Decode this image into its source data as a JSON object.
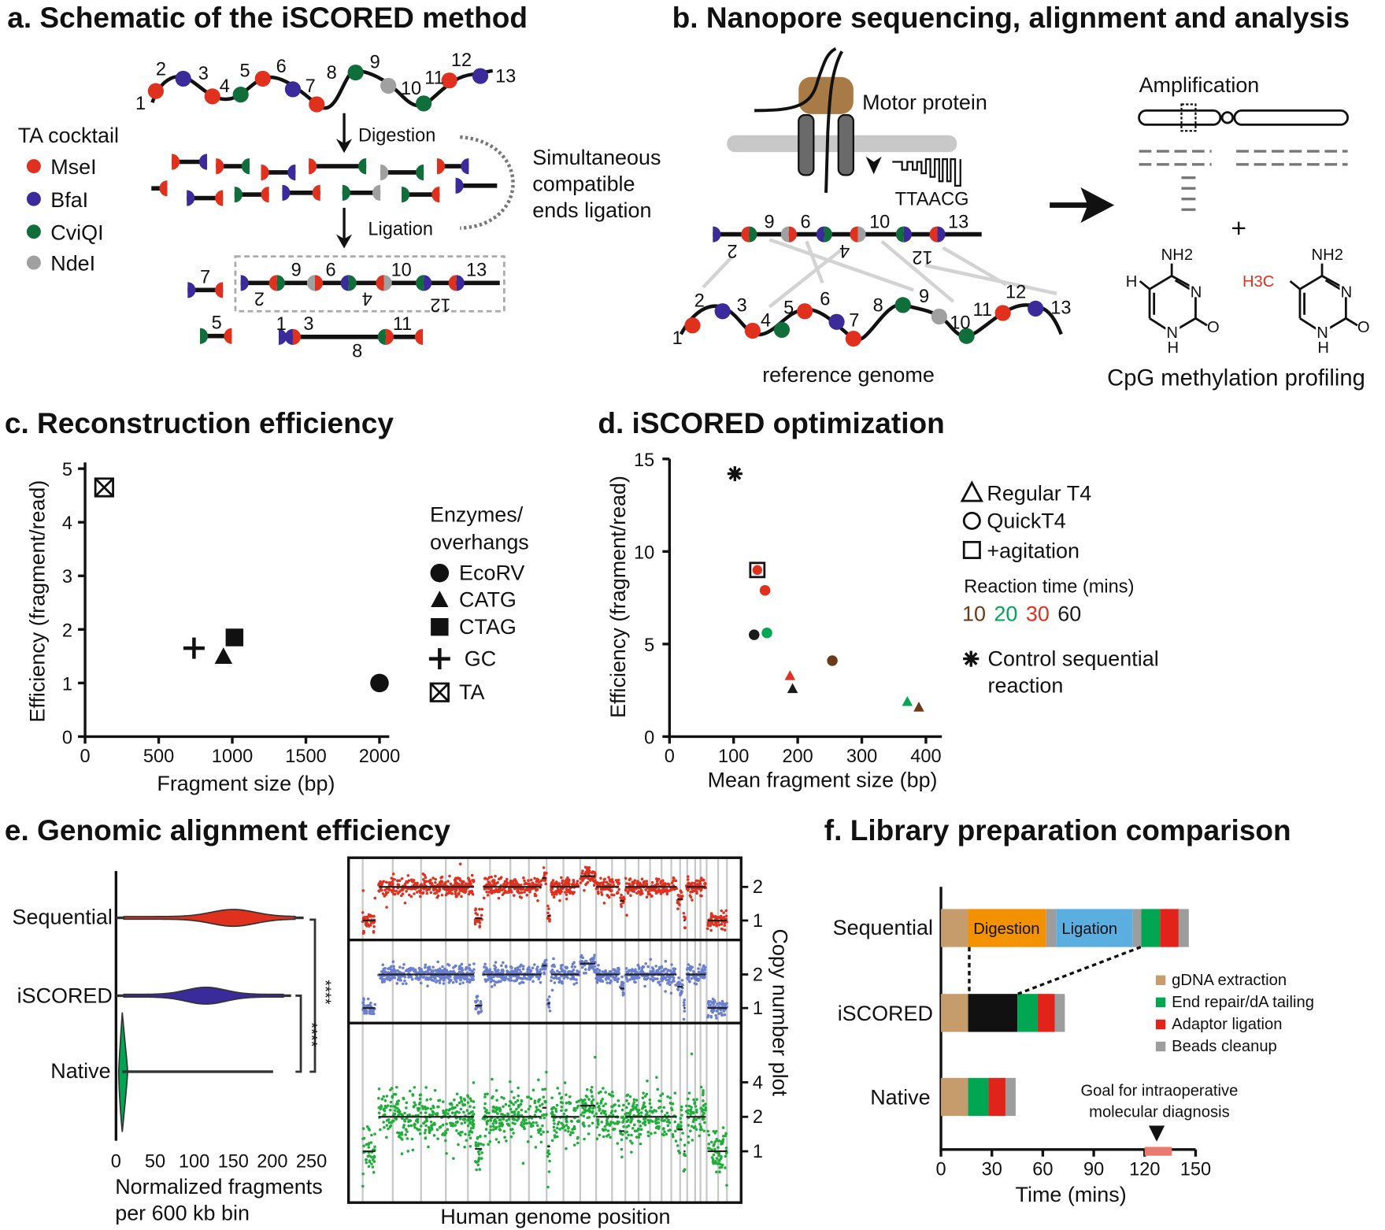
{
  "colors": {
    "msei": "#e0301e",
    "bfai": "#3a2a9a",
    "cviqi": "#0f6e3a",
    "ndei": "#a0a0a0",
    "t10": "#6b3a16",
    "t20": "#00a651",
    "t30": "#e0301e",
    "t60": "#1a1a1a"
  },
  "panel_a": {
    "title": "a. Schematic of the iSCORED method",
    "legend_title": "TA cocktail",
    "enzymes": [
      {
        "name": "MseI",
        "color": "#e0301e"
      },
      {
        "name": "BfaI",
        "color": "#3a2a9a"
      },
      {
        "name": "CviQI",
        "color": "#0f6e3a"
      },
      {
        "name": "NdeI",
        "color": "#a0a0a0"
      }
    ],
    "digestion": "Digestion",
    "ligation": "Ligation",
    "simultaneous": [
      "Simultaneous",
      "compatible",
      "ends ligation"
    ],
    "sites": [
      "1",
      "2",
      "3",
      "4",
      "5",
      "6",
      "7",
      "8",
      "9",
      "10",
      "11",
      "12",
      "13"
    ]
  },
  "panel_b": {
    "title": "b. Nanopore sequencing, alignment and analysis",
    "motor": "Motor protein",
    "signal_seq": "TTAACG",
    "reference": "reference genome",
    "amplification": "Amplification",
    "plus": "+",
    "methylation": "CpG methylation profiling",
    "chem": {
      "nh2": "NH2",
      "n": "N",
      "o": "O",
      "h": "H",
      "h3c": "H3C"
    }
  },
  "chart_data": [
    {
      "id": "c",
      "type": "scatter",
      "title": "c. Reconstruction efficiency",
      "xlabel": "Fragment size (bp)",
      "ylabel": "Efficiency (fragment/read)",
      "xlim": [
        0,
        2000
      ],
      "ylim": [
        0,
        5
      ],
      "xticks": [
        "0",
        "500",
        "1000",
        "1500",
        "2000"
      ],
      "yticks": [
        "0",
        "1",
        "2",
        "3",
        "4",
        "5"
      ],
      "legend_title": [
        "Enzymes/",
        "overhangs"
      ],
      "series": [
        {
          "name": "EcoRV",
          "marker": "circle",
          "x": 2000,
          "y": 1.0
        },
        {
          "name": "CATG",
          "marker": "triangle",
          "x": 940,
          "y": 1.5
        },
        {
          "name": "CTAG",
          "marker": "square",
          "x": 1015,
          "y": 1.85
        },
        {
          "name": "GC",
          "marker": "plus",
          "x": 740,
          "y": 1.65
        },
        {
          "name": "TA",
          "marker": "boxed-x",
          "x": 130,
          "y": 4.65
        }
      ]
    },
    {
      "id": "d",
      "type": "scatter",
      "title": "d. iSCORED optimization",
      "xlabel": "Mean fragment size (bp)",
      "ylabel": "Efficiency (fragment/read)",
      "xlim": [
        0,
        400
      ],
      "ylim": [
        0,
        15
      ],
      "xticks": [
        "0",
        "100",
        "200",
        "300",
        "400"
      ],
      "yticks": [
        "0",
        "5",
        "10",
        "15"
      ],
      "legend": {
        "shapes": [
          {
            "marker": "triangle",
            "label": "Regular T4"
          },
          {
            "marker": "circle",
            "label": "QuickT4"
          },
          {
            "marker": "square",
            "label": "+agitation"
          }
        ],
        "time_title": "Reaction time (mins)",
        "times": [
          {
            "label": "10",
            "color": "#6b3a16"
          },
          {
            "label": "20",
            "color": "#00a651"
          },
          {
            "label": "30",
            "color": "#e0301e"
          },
          {
            "label": "60",
            "color": "#1a1a1a"
          }
        ],
        "control": [
          "Control sequential",
          "reaction"
        ]
      },
      "points": [
        {
          "group": "control",
          "marker": "asterisk",
          "time": null,
          "x": 102,
          "y": 14.2
        },
        {
          "group": "QuickT4 +agitation",
          "marker": "circle-square",
          "time": "30",
          "x": 137,
          "y": 9.0
        },
        {
          "group": "QuickT4",
          "marker": "circle",
          "time": "30",
          "x": 149,
          "y": 7.9
        },
        {
          "group": "QuickT4",
          "marker": "circle",
          "time": "60",
          "x": 132,
          "y": 5.5
        },
        {
          "group": "QuickT4",
          "marker": "circle",
          "time": "20",
          "x": 152,
          "y": 5.6
        },
        {
          "group": "QuickT4",
          "marker": "circle",
          "time": "10",
          "x": 254,
          "y": 4.1
        },
        {
          "group": "Regular T4",
          "marker": "triangle",
          "time": "30",
          "x": 188,
          "y": 3.3
        },
        {
          "group": "Regular T4",
          "marker": "triangle",
          "time": "60",
          "x": 192,
          "y": 2.6
        },
        {
          "group": "Regular T4",
          "marker": "triangle",
          "time": "20",
          "x": 371,
          "y": 1.9
        },
        {
          "group": "Regular T4",
          "marker": "triangle",
          "time": "10",
          "x": 389,
          "y": 1.6
        }
      ]
    },
    {
      "id": "e-violin",
      "type": "violin",
      "title": "e. Genomic alignment efficiency",
      "xlabel": [
        "Normalized fragments",
        "per 600 kb bin"
      ],
      "xlim": [
        0,
        250
      ],
      "xticks": [
        "0",
        "50",
        "100",
        "150",
        "200",
        "250"
      ],
      "significance": "****",
      "series": [
        {
          "name": "Sequential",
          "color": "#e0301e",
          "center": 150,
          "spread": 28,
          "max": 240
        },
        {
          "name": "iSCORED",
          "color": "#3a2a9a",
          "center": 115,
          "spread": 25,
          "max": 224
        },
        {
          "name": "Native",
          "color": "#00a651",
          "center": 8,
          "spread": 3,
          "max": 201
        }
      ]
    },
    {
      "id": "e-cnv",
      "type": "scatter",
      "xlabel": "Human genome position",
      "ylabel": "Copy number plot",
      "series": [
        {
          "name": "Sequential",
          "color": "#e0301e",
          "yticks": [
            "2",
            "1"
          ]
        },
        {
          "name": "iSCORED",
          "color": "#6a7fd0",
          "yticks": [
            "2",
            "1"
          ]
        },
        {
          "name": "Native",
          "color": "#1fae3a",
          "yticks": [
            "4",
            "2",
            "1"
          ]
        }
      ]
    },
    {
      "id": "f",
      "type": "bar",
      "orientation": "horizontal-stacked",
      "title": "f. Library preparation comparison",
      "xlabel": "Time (mins)",
      "xlim": [
        0,
        150
      ],
      "xticks": [
        "0",
        "30",
        "60",
        "90",
        "120",
        "150"
      ],
      "categories": [
        "Sequential",
        "iSCORED",
        "Native"
      ],
      "stages": {
        "gdna": {
          "label": "gDNA extraction",
          "color": "#c69c6d"
        },
        "endrep": {
          "label": "End repair/dA tailing",
          "color": "#00a651"
        },
        "adaptor": {
          "label": "Adaptor ligation",
          "color": "#e2231a"
        },
        "beads": {
          "label": "Beads cleanup",
          "color": "#9d9d9d"
        },
        "digestion": {
          "label": "Digestion",
          "color": "#f39200"
        },
        "ligation": {
          "label": "Ligation",
          "color": "#5aafe0"
        },
        "iscored": {
          "label": "",
          "color": "#111111"
        }
      },
      "bars": [
        [
          [
            "gdna",
            16
          ],
          [
            "digestion",
            46
          ],
          [
            "beads",
            6
          ],
          [
            "ligation",
            45
          ],
          [
            "beads",
            5
          ],
          [
            "endrep",
            11
          ],
          [
            "adaptor",
            11
          ],
          [
            "beads",
            6
          ]
        ],
        [
          [
            "gdna",
            16
          ],
          [
            "iscored",
            29
          ],
          [
            "endrep",
            12
          ],
          [
            "adaptor",
            10
          ],
          [
            "beads",
            6
          ]
        ],
        [
          [
            "gdna",
            16
          ],
          [
            "endrep",
            12
          ],
          [
            "adaptor",
            10
          ],
          [
            "beads",
            6
          ]
        ]
      ],
      "goal": {
        "label": [
          "Goal for intraoperative",
          "molecular diagnosis"
        ],
        "range": [
          120,
          136
        ],
        "color": "#e87b6e"
      }
    }
  ]
}
